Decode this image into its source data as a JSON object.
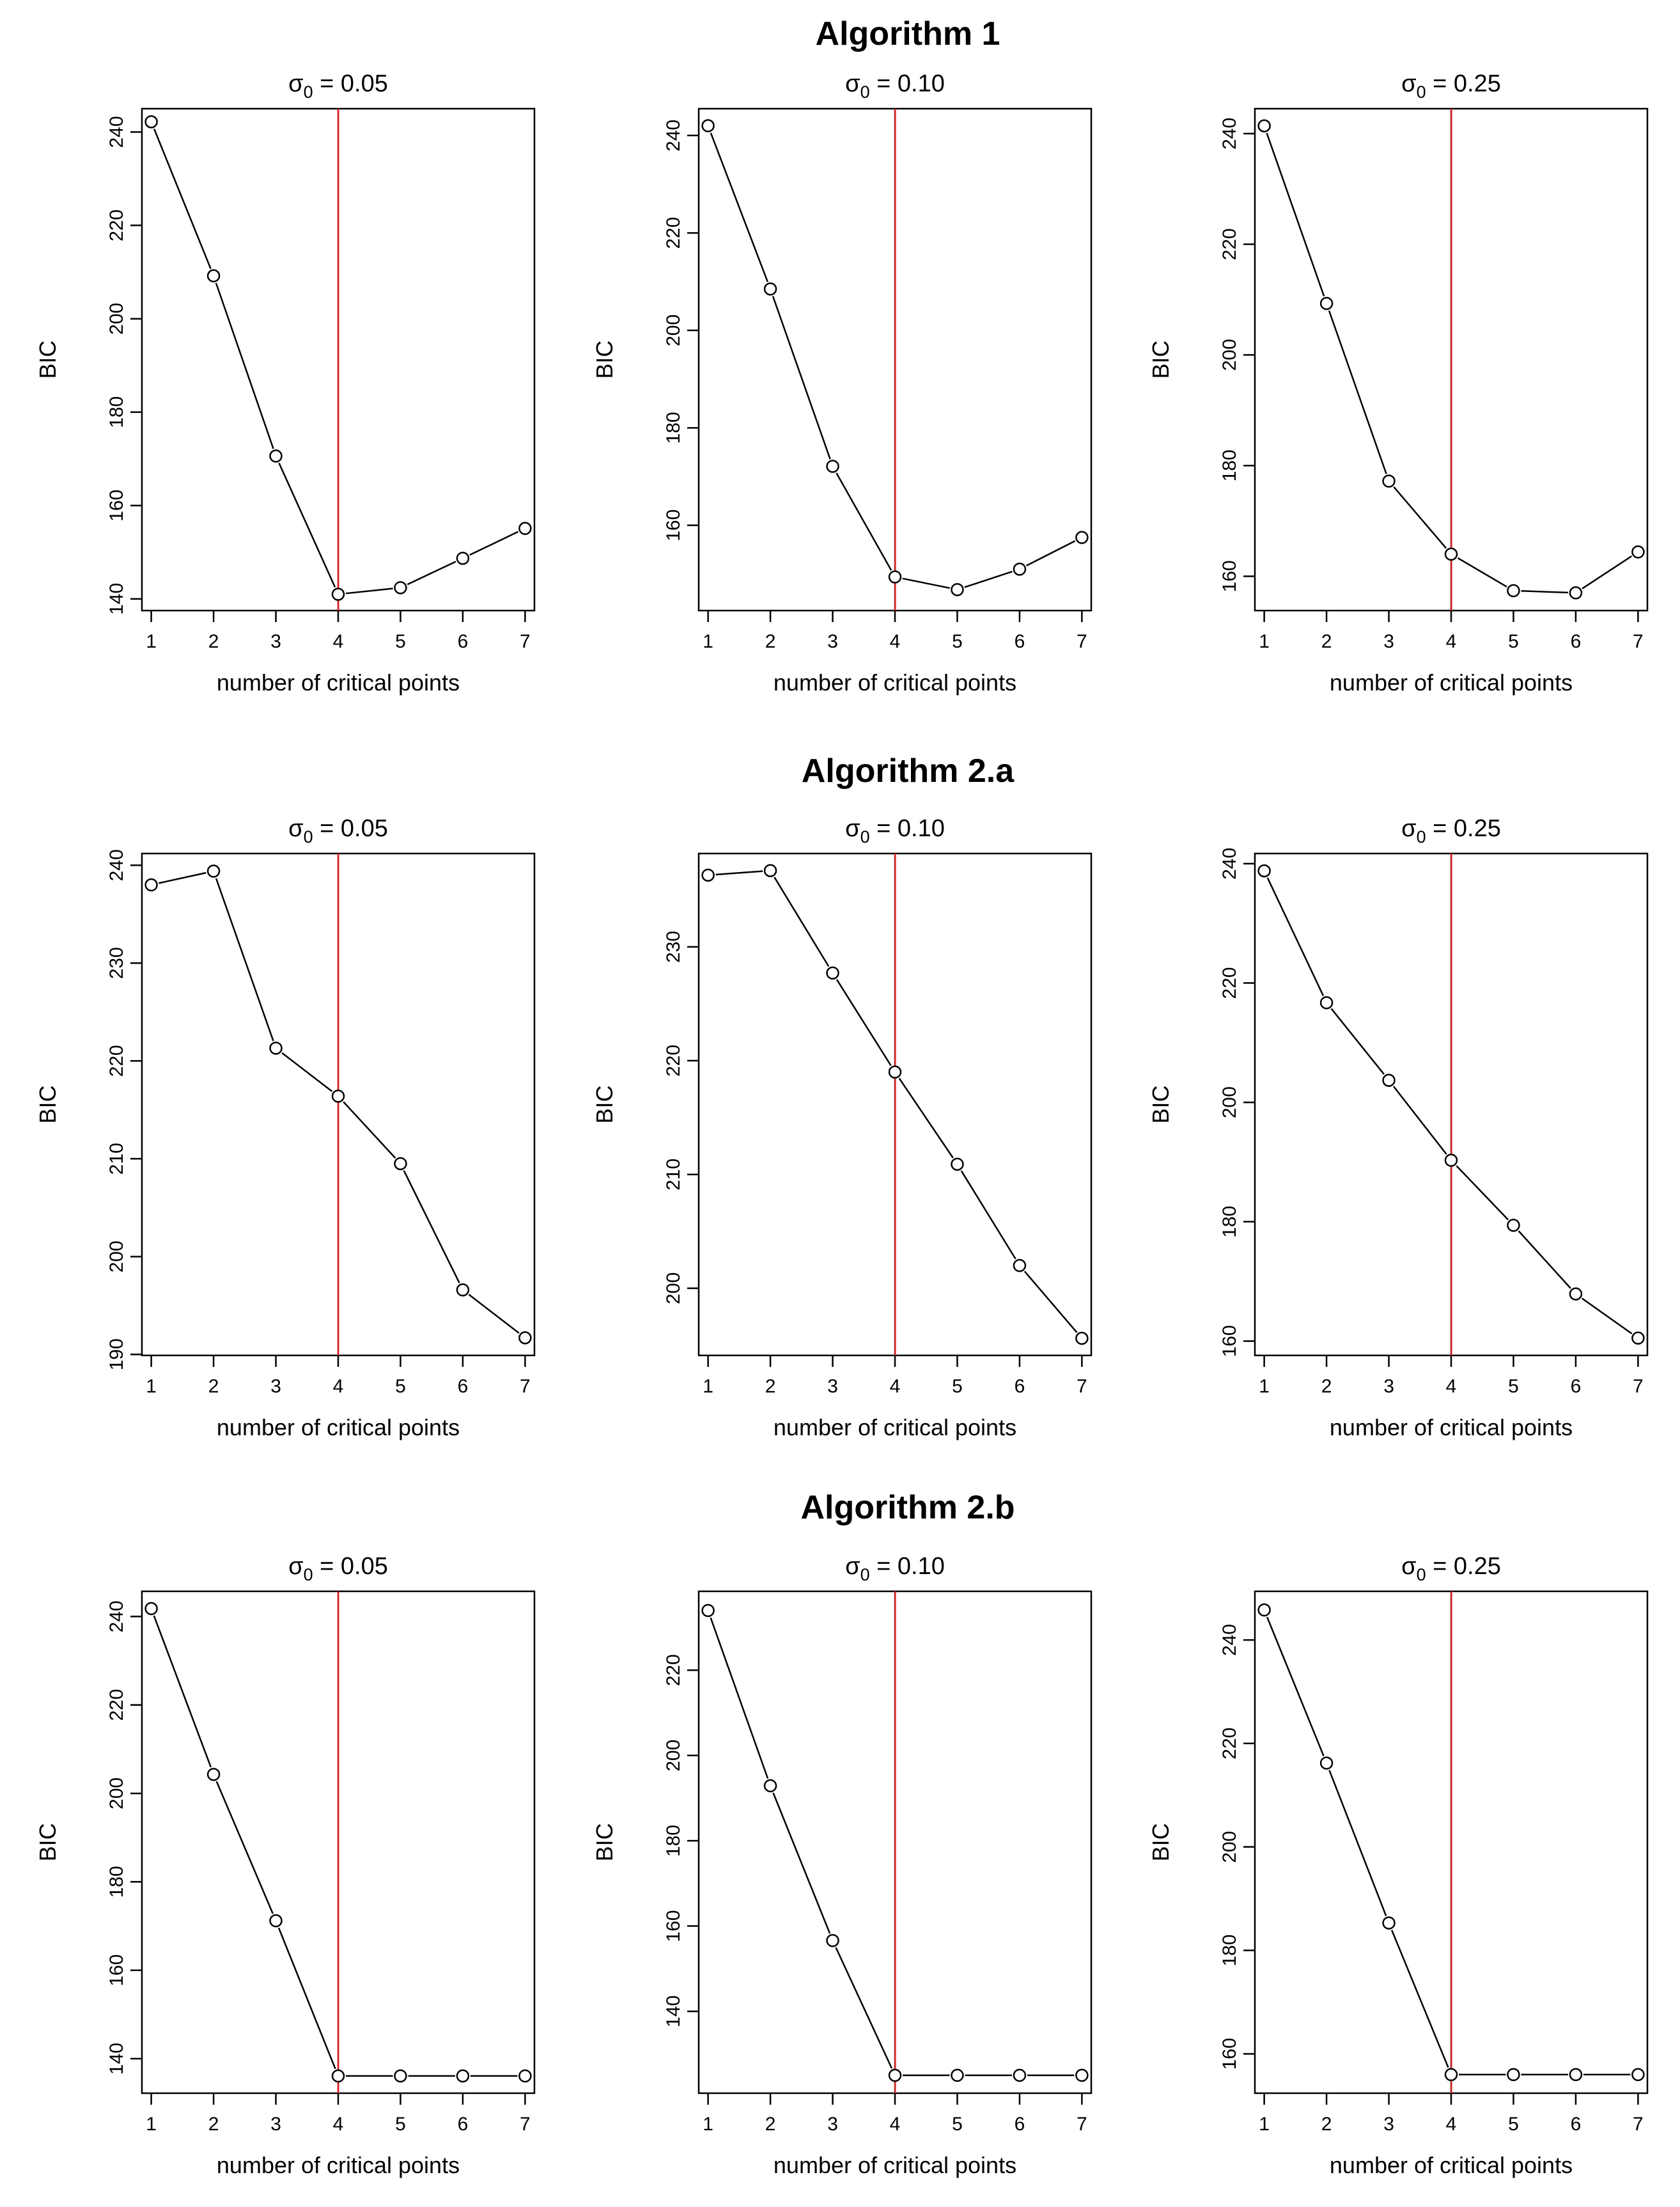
{
  "figure": {
    "headings": [
      "Algorithm 1",
      "Algorithm 2.a",
      "Algorithm 2.b"
    ],
    "xlabel": "number of critical points",
    "ylabel": "BIC",
    "title_prefix": "σ",
    "title_subscript": "0",
    "title_equals": " = ",
    "colors": {
      "series": "#000000",
      "reference_line": "#ff0000",
      "background": "#ffffff"
    }
  },
  "chart_data": [
    {
      "type": "line",
      "group": "Algorithm 1",
      "sigma": "0.05",
      "x": [
        1,
        2,
        3,
        4,
        5,
        6,
        7
      ],
      "y": [
        242.2,
        209.2,
        170.6,
        141.0,
        142.4,
        148.7,
        155.1
      ],
      "ylim": [
        137.5,
        245.0
      ],
      "yticks": [
        140,
        160,
        180,
        200,
        220,
        240
      ],
      "xlim": [
        0.85,
        7.15
      ],
      "xticks": [
        1,
        2,
        3,
        4,
        5,
        6,
        7
      ],
      "vline": 4,
      "xlabel": "number of critical points",
      "ylabel": "BIC"
    },
    {
      "type": "line",
      "group": "Algorithm 1",
      "sigma": "0.10",
      "x": [
        1,
        2,
        3,
        4,
        5,
        6,
        7
      ],
      "y": [
        242.0,
        208.5,
        172.1,
        149.4,
        146.8,
        151.0,
        157.5
      ],
      "ylim": [
        142.5,
        245.5
      ],
      "yticks": [
        160,
        180,
        200,
        220,
        240
      ],
      "xlim": [
        0.85,
        7.15
      ],
      "xticks": [
        1,
        2,
        3,
        4,
        5,
        6,
        7
      ],
      "vline": 4,
      "xlabel": "number of critical points",
      "ylabel": "BIC"
    },
    {
      "type": "line",
      "group": "Algorithm 1",
      "sigma": "0.25",
      "x": [
        1,
        2,
        3,
        4,
        5,
        6,
        7
      ],
      "y": [
        241.4,
        209.3,
        177.2,
        164.0,
        157.4,
        157.0,
        164.4
      ],
      "ylim": [
        153.8,
        244.5
      ],
      "yticks": [
        160,
        180,
        200,
        220,
        240
      ],
      "xlim": [
        0.85,
        7.15
      ],
      "xticks": [
        1,
        2,
        3,
        4,
        5,
        6,
        7
      ],
      "vline": 4,
      "xlabel": "number of critical points",
      "ylabel": "BIC"
    },
    {
      "type": "line",
      "group": "Algorithm 2.a",
      "sigma": "0.05",
      "x": [
        1,
        2,
        3,
        4,
        5,
        6,
        7
      ],
      "y": [
        238.0,
        239.4,
        221.3,
        216.4,
        209.5,
        196.6,
        191.7
      ],
      "ylim": [
        189.9,
        241.2
      ],
      "yticks": [
        190,
        200,
        210,
        220,
        230,
        240
      ],
      "xlim": [
        0.85,
        7.15
      ],
      "xticks": [
        1,
        2,
        3,
        4,
        5,
        6,
        7
      ],
      "vline": 4,
      "xlabel": "number of critical points",
      "ylabel": "BIC"
    },
    {
      "type": "line",
      "group": "Algorithm 2.a",
      "sigma": "0.10",
      "x": [
        1,
        2,
        3,
        4,
        5,
        6,
        7
      ],
      "y": [
        236.3,
        236.7,
        227.7,
        219.0,
        210.9,
        202.0,
        195.6
      ],
      "ylim": [
        194.1,
        238.2
      ],
      "yticks": [
        200,
        210,
        220,
        230
      ],
      "xlim": [
        0.85,
        7.15
      ],
      "xticks": [
        1,
        2,
        3,
        4,
        5,
        6,
        7
      ],
      "vline": 4,
      "xlabel": "number of critical points",
      "ylabel": "BIC"
    },
    {
      "type": "line",
      "group": "Algorithm 2.a",
      "sigma": "0.25",
      "x": [
        1,
        2,
        3,
        4,
        5,
        6,
        7
      ],
      "y": [
        238.8,
        216.7,
        203.7,
        190.3,
        179.4,
        167.9,
        160.5
      ],
      "ylim": [
        157.6,
        241.7
      ],
      "yticks": [
        160,
        180,
        200,
        220,
        240
      ],
      "xlim": [
        0.85,
        7.15
      ],
      "xticks": [
        1,
        2,
        3,
        4,
        5,
        6,
        7
      ],
      "vline": 4,
      "xlabel": "number of critical points",
      "ylabel": "BIC"
    },
    {
      "type": "line",
      "group": "Algorithm 2.b",
      "sigma": "0.05",
      "x": [
        1,
        2,
        3,
        4,
        5,
        6,
        7
      ],
      "y": [
        241.8,
        204.3,
        171.2,
        136.1,
        136.1,
        136.1,
        136.1
      ],
      "ylim": [
        132.2,
        245.7
      ],
      "yticks": [
        140,
        160,
        180,
        200,
        220,
        240
      ],
      "xlim": [
        0.85,
        7.15
      ],
      "xticks": [
        1,
        2,
        3,
        4,
        5,
        6,
        7
      ],
      "vline": 4,
      "xlabel": "number of critical points",
      "ylabel": "BIC"
    },
    {
      "type": "line",
      "group": "Algorithm 2.b",
      "sigma": "0.10",
      "x": [
        1,
        2,
        3,
        4,
        5,
        6,
        7
      ],
      "y": [
        234.0,
        192.9,
        156.6,
        125.0,
        125.0,
        125.0,
        125.0
      ],
      "ylim": [
        120.8,
        238.5
      ],
      "yticks": [
        140,
        160,
        180,
        200,
        220
      ],
      "xlim": [
        0.85,
        7.15
      ],
      "xticks": [
        1,
        2,
        3,
        4,
        5,
        6,
        7
      ],
      "vline": 4,
      "xlabel": "number of critical points",
      "ylabel": "BIC"
    },
    {
      "type": "line",
      "group": "Algorithm 2.b",
      "sigma": "0.25",
      "x": [
        1,
        2,
        3,
        4,
        5,
        6,
        7
      ],
      "y": [
        245.8,
        216.2,
        185.3,
        156.0,
        156.0,
        156.0,
        156.0
      ],
      "ylim": [
        152.4,
        249.4
      ],
      "yticks": [
        160,
        180,
        200,
        220,
        240
      ],
      "xlim": [
        0.85,
        7.15
      ],
      "xticks": [
        1,
        2,
        3,
        4,
        5,
        6,
        7
      ],
      "vline": 4,
      "xlabel": "number of critical points",
      "ylabel": "BIC"
    }
  ]
}
